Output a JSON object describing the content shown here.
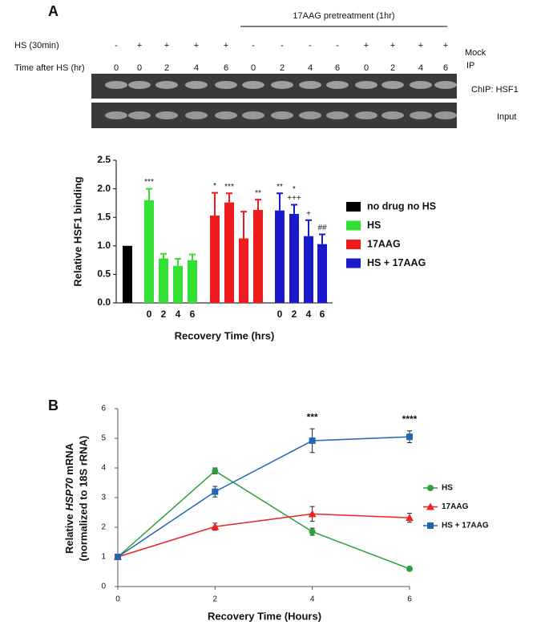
{
  "panel_labels": [
    "A",
    "B"
  ],
  "gel": {
    "pretreatment": "17AAG pretreatment (1hr)",
    "row_labels": [
      "HS (30min)",
      "Time after HS (hr)"
    ],
    "hs": [
      "-",
      "+",
      "+",
      "+",
      "+",
      "-",
      "-",
      "-",
      "-",
      "+",
      "+",
      "+",
      "+"
    ],
    "time": [
      "0",
      "0",
      "2",
      "4",
      "6",
      "0",
      "2",
      "4",
      "6",
      "0",
      "2",
      "4",
      "6"
    ],
    "mock_ip": [
      "Mock",
      "IP"
    ],
    "blot_labels": [
      "ChIP: HSF1",
      "Input"
    ]
  },
  "chart_data": [
    {
      "type": "bar",
      "categories": [
        null,
        "0",
        "2",
        "4",
        "6",
        null,
        null,
        null,
        null,
        "0",
        "2",
        "4",
        "6"
      ],
      "ylabel": "Relative HSF1 binding",
      "xlabel": "Recovery Time (hrs)",
      "ylim": [
        0,
        2.5
      ],
      "yticks": [
        {
          "value": 0,
          "label": "0.0"
        },
        {
          "value": 0.5,
          "label": "0.5"
        },
        {
          "value": 1,
          "label": "1.0"
        },
        {
          "value": 1.5,
          "label": "1.5"
        },
        {
          "value": 2,
          "label": "2.0"
        },
        {
          "value": 2.5,
          "label": "2.5"
        }
      ],
      "legend": "right",
      "series": [
        {
          "name": "no drug no HS",
          "color": "#000000",
          "values": [
            1.0,
            null,
            null,
            null,
            null,
            null,
            null,
            null,
            null,
            null,
            null,
            null,
            null
          ],
          "errors": [
            null,
            null,
            null,
            null,
            null,
            null,
            null,
            null,
            null,
            null,
            null,
            null,
            null
          ],
          "annotations": [
            null,
            null,
            null,
            null,
            null,
            null,
            null,
            null,
            null,
            null,
            null,
            null,
            null
          ]
        },
        {
          "name": "HS",
          "color": "#33e033",
          "values": [
            null,
            1.8,
            0.78,
            0.65,
            0.75,
            null,
            null,
            null,
            null,
            null,
            null,
            null,
            null
          ],
          "errors": [
            null,
            0.2,
            0.08,
            0.12,
            0.1,
            null,
            null,
            null,
            null,
            null,
            null,
            null,
            null
          ],
          "annotations": [
            null,
            [
              "***"
            ],
            null,
            null,
            null,
            null,
            null,
            null,
            null,
            null,
            null,
            null,
            null
          ]
        },
        {
          "name": "17AAG",
          "color": "#ee1c1c",
          "values": [
            null,
            null,
            null,
            null,
            null,
            1.53,
            1.76,
            1.13,
            1.63,
            null,
            null,
            null,
            null
          ],
          "errors": [
            null,
            null,
            null,
            null,
            null,
            0.4,
            0.16,
            0.47,
            0.18,
            null,
            null,
            null,
            null
          ],
          "annotations": [
            null,
            null,
            null,
            null,
            null,
            [
              "*"
            ],
            [
              "***"
            ],
            null,
            [
              "**"
            ],
            null,
            null,
            null,
            null
          ]
        },
        {
          "name": "HS + 17AAG",
          "color": "#1a1acc",
          "values": [
            null,
            null,
            null,
            null,
            null,
            null,
            null,
            null,
            null,
            1.62,
            1.56,
            1.17,
            1.03
          ],
          "errors": [
            null,
            null,
            null,
            null,
            null,
            null,
            null,
            null,
            null,
            0.3,
            0.16,
            0.28,
            0.17
          ],
          "annotations": [
            null,
            null,
            null,
            null,
            null,
            null,
            null,
            null,
            null,
            [
              "**"
            ],
            [
              "*",
              "+++"
            ],
            [
              "+"
            ],
            [
              "##"
            ]
          ]
        }
      ]
    },
    {
      "type": "line",
      "x": [
        0,
        2,
        4,
        6
      ],
      "xlim": [
        0,
        6
      ],
      "xticks": [
        0,
        2,
        4,
        6
      ],
      "ylim": [
        0,
        6
      ],
      "yticks": [
        0,
        1,
        2,
        3,
        4,
        5,
        6
      ],
      "xlabel": "Recovery Time (Hours)",
      "ylabel": {
        "prefix": "Relative",
        "italic": "HSP70",
        "suffix": "mRNA",
        "line2": "(normalized to 18S rRNA)"
      },
      "legend": "right",
      "annotations": [
        {
          "x": 4,
          "text": "***"
        },
        {
          "x": 6,
          "text": "****"
        }
      ],
      "series": [
        {
          "name": "HS",
          "color": "#2e9e3e",
          "marker": "circle",
          "values": [
            1,
            3.9,
            1.85,
            0.6
          ],
          "errors": [
            0.05,
            0.1,
            0.12,
            0.06
          ]
        },
        {
          "name": "17AAG",
          "color": "#ee2222",
          "marker": "triangle",
          "values": [
            1,
            2.02,
            2.45,
            2.32
          ],
          "errors": [
            0.05,
            0.12,
            0.25,
            0.15
          ]
        },
        {
          "name": "HS + 17AAG",
          "color": "#2166b0",
          "marker": "square",
          "values": [
            1,
            3.2,
            4.92,
            5.05
          ],
          "errors": [
            0.05,
            0.18,
            0.4,
            0.2
          ]
        }
      ]
    }
  ]
}
